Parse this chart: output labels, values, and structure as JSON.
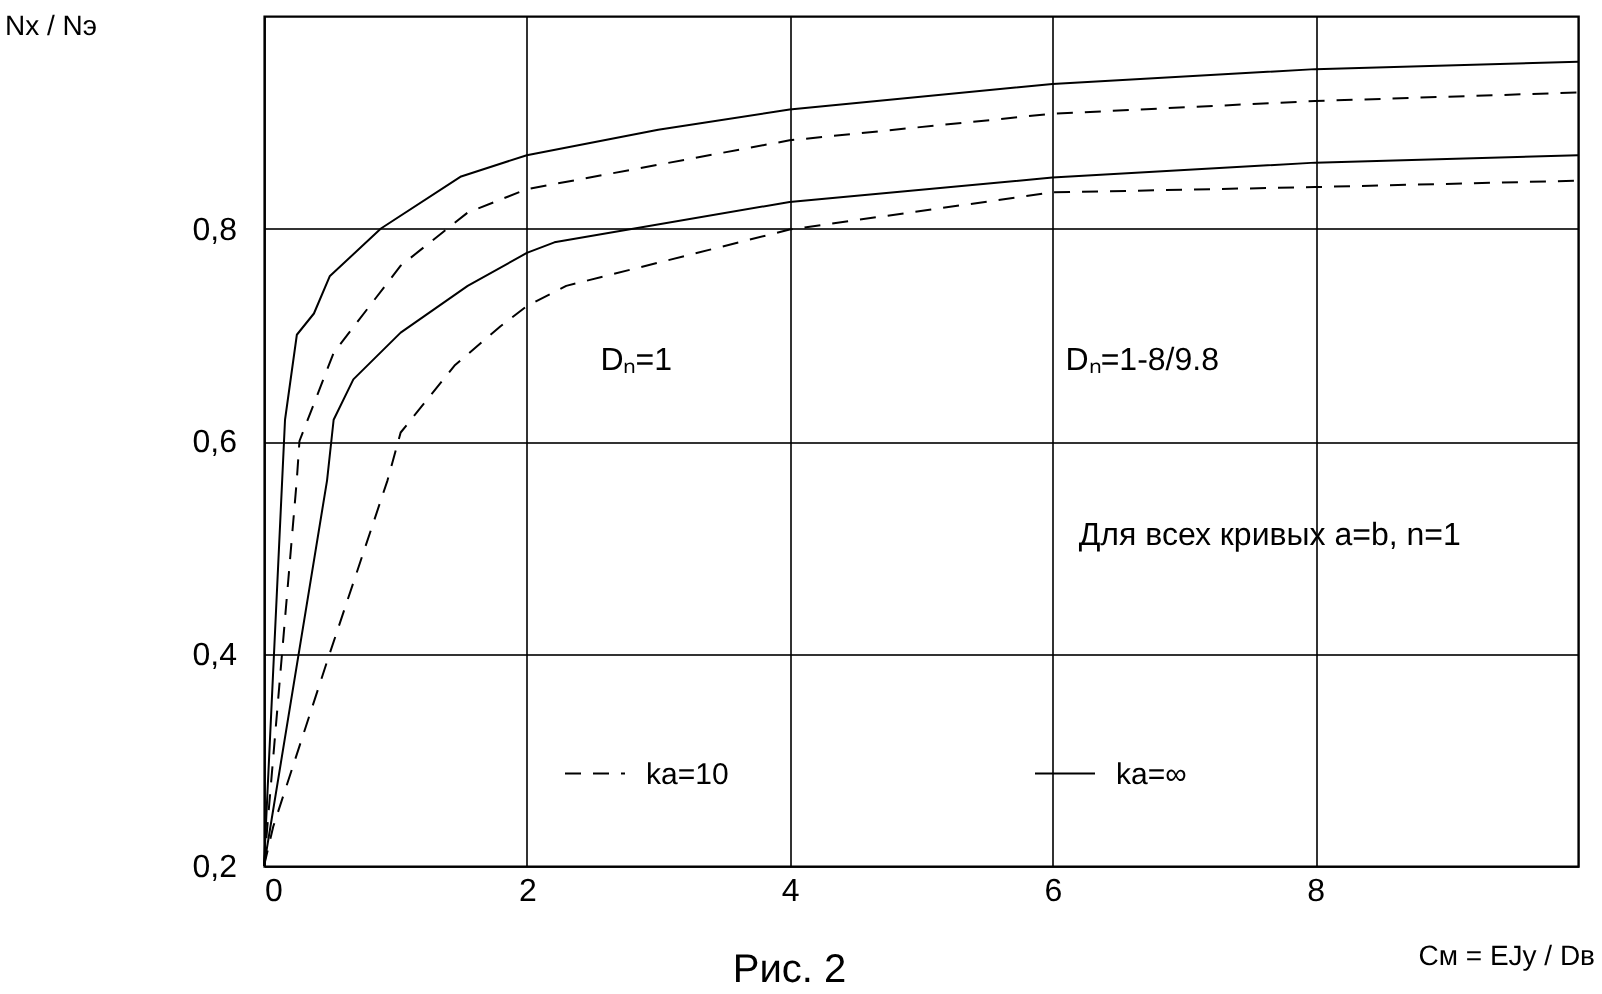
{
  "chart_data": {
    "type": "line",
    "title": "Рис. 2",
    "xlabel": "Cм = EJy / Dв",
    "ylabel": "Nx / Nэ",
    "xlim": [
      0,
      10
    ],
    "ylim": [
      0.2,
      1.0
    ],
    "xticks": [
      0,
      2,
      4,
      6,
      8
    ],
    "yticks": [
      {
        "value": 0.2,
        "label": "0,2"
      },
      {
        "value": 0.4,
        "label": "0,4"
      },
      {
        "value": 0.6,
        "label": "0,6"
      },
      {
        "value": 0.8,
        "label": "0,8"
      }
    ],
    "grid": true,
    "legend": "bottom",
    "series": [
      {
        "name": "ka=10",
        "color": "#000000",
        "line_style": "dashed",
        "x": [
          0,
          0.25,
          0.27,
          0.53,
          1.04,
          1.55,
          2,
          4,
          6,
          8,
          10
        ],
        "values": [
          0.2,
          0.564,
          0.6,
          0.683,
          0.765,
          0.815,
          0.837,
          0.883,
          0.908,
          0.92,
          0.928
        ]
      },
      {
        "name": "ka=∞",
        "color": "#000000",
        "line_style": "solid",
        "x": [
          0,
          0.16,
          0.25,
          0.38,
          0.5,
          0.89,
          1.5,
          2,
          3,
          4,
          6,
          8,
          10
        ],
        "values": [
          0.2,
          0.62,
          0.7,
          0.72,
          0.755,
          0.8,
          0.849,
          0.869,
          0.893,
          0.912,
          0.936,
          0.95,
          0.957
        ]
      },
      {
        "color": "#000000",
        "line_style": "solid",
        "x": [
          0,
          0.48,
          0.53,
          0.68,
          1.04,
          1.55,
          2,
          2.21,
          4,
          6,
          8,
          10
        ],
        "values": [
          0.2,
          0.563,
          0.62,
          0.658,
          0.702,
          0.746,
          0.777,
          0.787,
          0.825,
          0.848,
          0.862,
          0.869
        ]
      },
      {
        "color": "#000000",
        "line_style": "dashed",
        "x": [
          0,
          0.07,
          0.5,
          0.94,
          1.04,
          1.45,
          1.8,
          2,
          2.3,
          4,
          6,
          8,
          10
        ],
        "values": [
          0.2,
          0.237,
          0.4,
          0.563,
          0.608,
          0.671,
          0.708,
          0.727,
          0.746,
          0.799,
          0.834,
          0.839,
          0.845
        ]
      }
    ],
    "annotations": [
      "Dₙ=1",
      "Dₙ=1-8/9.8",
      "Для всех кривых a=b, n=1"
    ]
  }
}
